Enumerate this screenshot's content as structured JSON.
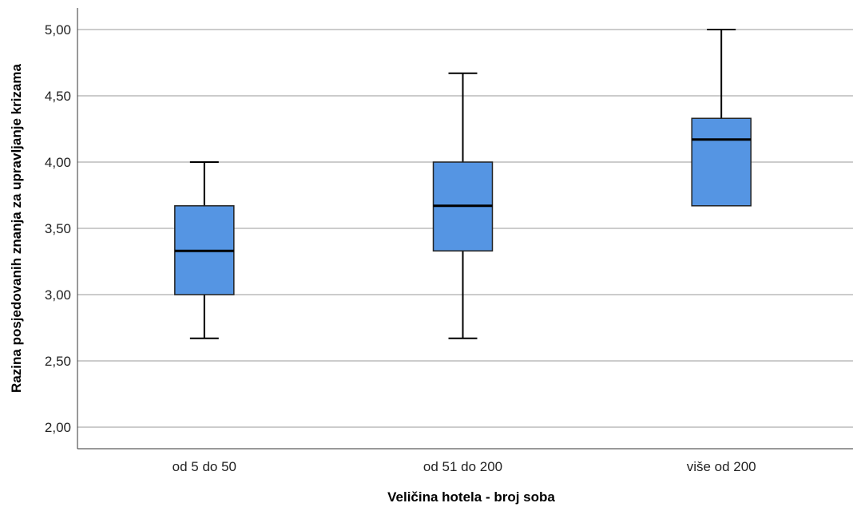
{
  "chart_data": {
    "type": "boxplot",
    "xlabel": "Veličina hotela - broj soba",
    "ylabel": "Razina posjedovanih znanja za upravljanje krizama",
    "ylim": [
      1.85,
      5.15
    ],
    "y_ticks": [
      2.0,
      2.5,
      3.0,
      3.5,
      4.0,
      4.5,
      5.0
    ],
    "y_tick_labels": [
      "2,00",
      "2,50",
      "3,00",
      "3,50",
      "4,00",
      "4,50",
      "5,00"
    ],
    "grid": true,
    "categories": [
      "od 5 do 50",
      "od 51 do 200",
      "više od 200"
    ],
    "boxes": [
      {
        "category": "od 5 do 50",
        "min": 2.67,
        "q1": 3.0,
        "median": 3.33,
        "q3": 3.67,
        "max": 4.0
      },
      {
        "category": "od 51 do 200",
        "min": 2.67,
        "q1": 3.33,
        "median": 3.67,
        "q3": 4.0,
        "max": 4.67
      },
      {
        "category": "više od 200",
        "min": 3.67,
        "q1": 3.67,
        "median": 4.17,
        "q3": 4.33,
        "max": 5.0
      }
    ],
    "box_color": "#5595E3",
    "gridline_color": "#BBBBBB"
  }
}
